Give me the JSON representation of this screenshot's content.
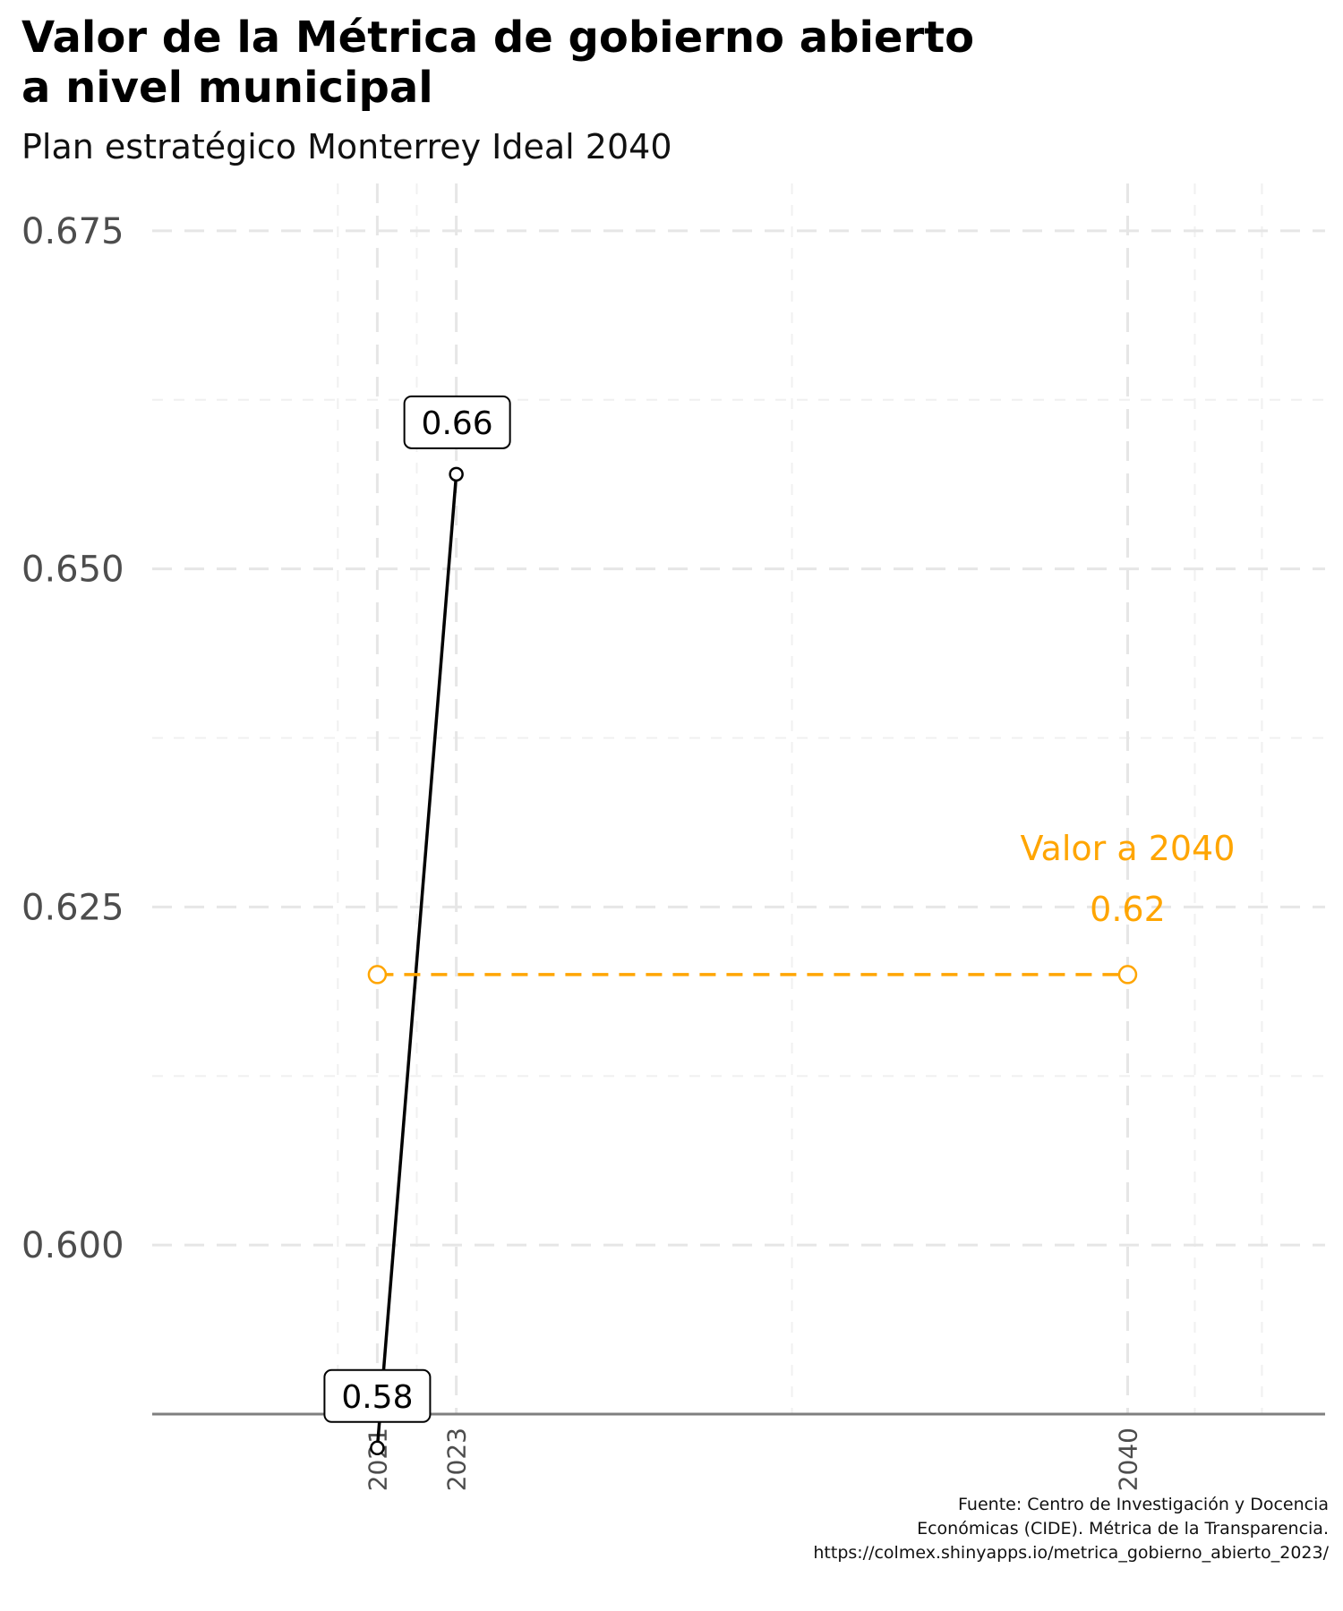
{
  "chart_data": {
    "type": "line",
    "title_lines": [
      "Valor de la Métrica de gobierno abierto",
      "a nivel municipal"
    ],
    "subtitle": "Plan estratégico Monterrey Ideal 2040",
    "xlabel": "",
    "ylabel": "",
    "x_ticks": [
      "2021",
      "2023",
      "2040"
    ],
    "y_ticks": [
      "0.600",
      "0.625",
      "0.650",
      "0.675"
    ],
    "y_tick_values": [
      0.6,
      0.625,
      0.65,
      0.675
    ],
    "xlim": [
      2015.3,
      2045
    ],
    "ylim": [
      0.5875,
      0.6785
    ],
    "grid": true,
    "series": [
      {
        "x": [
          2021,
          2023
        ],
        "y": [
          0.585,
          0.657
        ],
        "labels": [
          "0.58",
          "0.66"
        ],
        "color": "#000000",
        "line_style": "solid"
      },
      {
        "x": [
          2021,
          2040
        ],
        "y": [
          0.62,
          0.62
        ],
        "color": "#FFA500",
        "line_style": "dashed"
      }
    ],
    "annotations": [
      {
        "text": "Valor a 2040",
        "x": 2040,
        "y": 0.62,
        "color": "#FFA500"
      },
      {
        "text": "0.62",
        "x": 2040,
        "y": 0.62,
        "color": "#FFA500"
      }
    ]
  },
  "caption_lines": [
    "Fuente: Centro de Investigación y Docencia",
    "Económicas (CIDE). Métrica de la Transparencia.",
    "https://colmex.shinyapps.io/metrica_gobierno_abierto_2023/"
  ]
}
